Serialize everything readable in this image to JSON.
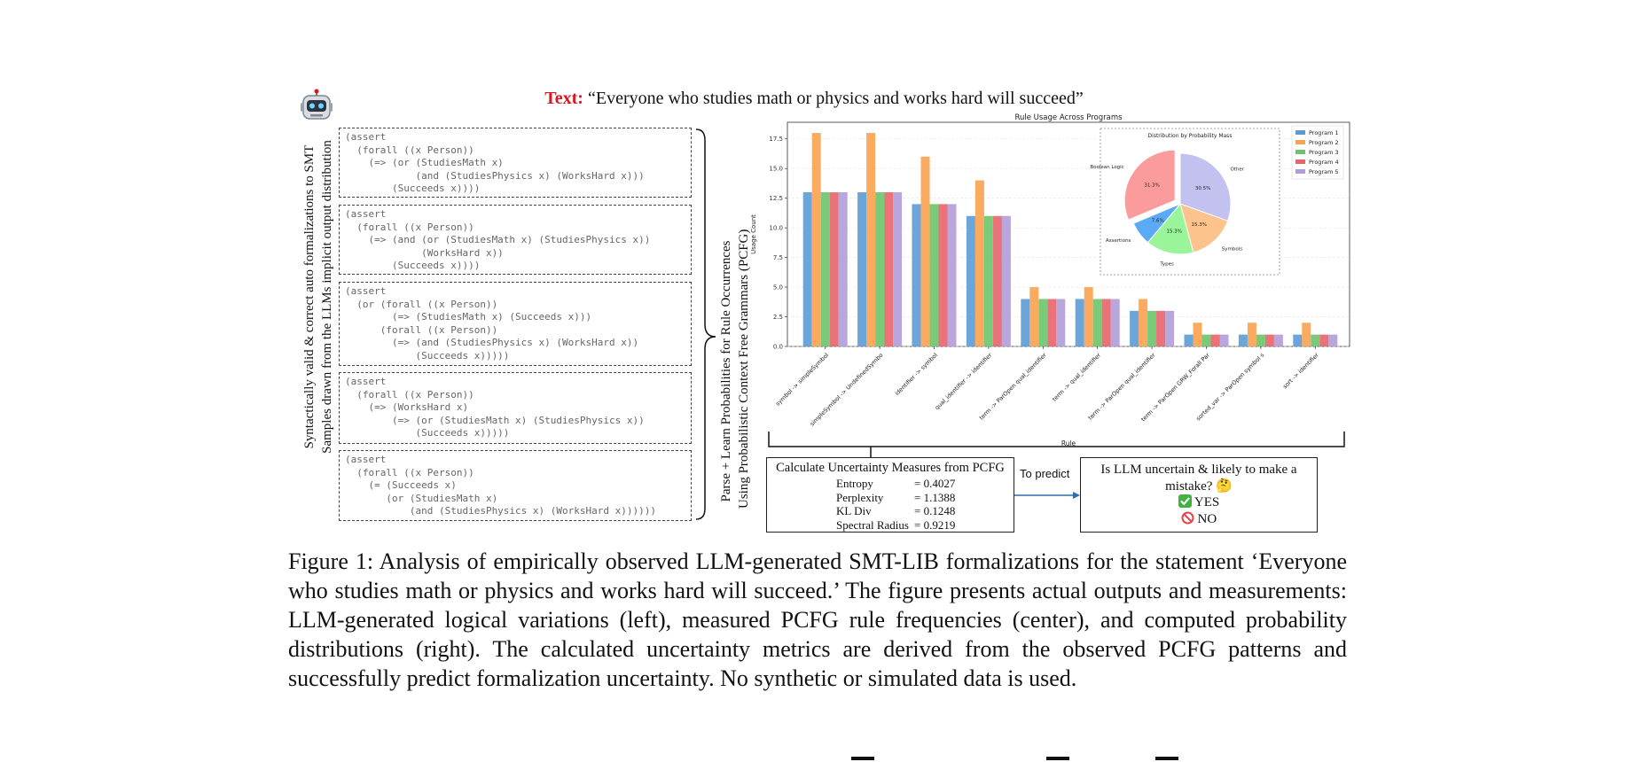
{
  "header": {
    "label": "Text:",
    "quote": "“Everyone who studies math or physics and works hard will succeed”"
  },
  "left_label": {
    "line1": "Syntactically valid & correct auto formalizations to SMT",
    "line2": "Samples drawn from the LLMs implicit output distribution"
  },
  "samples": [
    "(assert\n  (forall ((x Person))\n    (=> (or (StudiesMath x)\n            (and (StudiesPhysics x) (WorksHard x)))\n        (Succeeds x))))",
    "(assert\n  (forall ((x Person))\n    (=> (and (or (StudiesMath x) (StudiesPhysics x))\n             (WorksHard x))\n        (Succeeds x))))",
    "(assert\n  (or (forall ((x Person))\n        (=> (StudiesMath x) (Succeeds x)))\n      (forall ((x Person))\n        (=> (and (StudiesPhysics x) (WorksHard x))\n            (Succeeds x)))))",
    "(assert\n  (forall ((x Person))\n    (=> (WorksHard x)\n        (=> (or (StudiesMath x) (StudiesPhysics x))\n            (Succeeds x)))))",
    "(assert\n  (forall ((x Person))\n    (= (Succeeds x)\n       (or (StudiesMath x)\n           (and (StudiesPhysics x) (WorksHard x))))))"
  ],
  "middle_label": {
    "line1": "Parse + Learn Probabilities for Rule Occurrences",
    "line2": "Using Probabilistic Context Free Grammars (PCFG)"
  },
  "colors": {
    "programs": [
      "#5b9bd5",
      "#f9a24e",
      "#6cc56a",
      "#e8636a",
      "#b19cd9"
    ],
    "pie": [
      "#c2c1f0",
      "#fcc48c",
      "#9af59a",
      "#5aaaf5",
      "#fc9b9b"
    ],
    "red": "#e0141e",
    "check": "#3fb33f",
    "no": "#e64545"
  },
  "chart_data": {
    "type": "bar",
    "title": "Rule Usage Across Programs",
    "xlabel": "Rule",
    "ylabel": "Usage Count",
    "ylim": [
      0,
      18.9
    ],
    "yticks": [
      "0.0",
      "2.5",
      "5.0",
      "7.5",
      "10.0",
      "12.5",
      "15.0",
      "17.5"
    ],
    "categories": [
      "symbol -> simpleSymbol",
      "simpleSymbol -> UndefinedSymbo",
      "identifier -> symbol",
      "qual_identifier -> identifier",
      "term -> ParOpen qual_identifier",
      "term -> qual_identifier",
      "term -> ParOpen qual_identifier",
      "term -> ParOpen GRW_Forall Par",
      "sorted_var -> ParOpen symbol s",
      "sort -> identifier"
    ],
    "series": [
      {
        "name": "Program 1",
        "values": [
          13,
          13,
          12,
          11,
          4,
          4,
          3,
          1,
          1,
          1
        ]
      },
      {
        "name": "Program 2",
        "values": [
          18,
          18,
          16,
          14,
          5,
          5,
          4,
          2,
          2,
          2
        ]
      },
      {
        "name": "Program 3",
        "values": [
          13,
          13,
          12,
          11,
          4,
          4,
          3,
          1,
          1,
          1
        ]
      },
      {
        "name": "Program 4",
        "values": [
          13,
          13,
          12,
          11,
          4,
          4,
          3,
          1,
          1,
          1
        ]
      },
      {
        "name": "Program 5",
        "values": [
          13,
          13,
          12,
          11,
          4,
          4,
          3,
          1,
          1,
          1
        ]
      }
    ],
    "inset_pie": {
      "title": "Distribution by Probability Mass",
      "slices": [
        {
          "label": "Other",
          "value": 30.5,
          "pct": "30.5%"
        },
        {
          "label": "Symbols",
          "value": 15.3,
          "pct": "15.3%"
        },
        {
          "label": "Types",
          "value": 15.3,
          "pct": "15.3%"
        },
        {
          "label": "Assertions",
          "value": 7.6,
          "pct": "7.6%"
        },
        {
          "label": "Boolean Logic",
          "value": 31.3,
          "pct": "31.3%"
        }
      ]
    }
  },
  "uncertainty": {
    "title": "Calculate Uncertainty Measures from PCFG",
    "metrics": [
      {
        "name": "Entropy",
        "value": "= 0.4027"
      },
      {
        "name": "Perplexity",
        "value": "= 1.1388"
      },
      {
        "name": "KL Div",
        "value": "= 0.1248"
      },
      {
        "name": "Spectral Radius",
        "value": "= 0.9219"
      }
    ]
  },
  "predict_label": "To predict",
  "question": {
    "text": "Is LLM uncertain & likely to make a mistake? 🤔",
    "yes": "YES",
    "no": "NO"
  },
  "caption": "Figure 1: Analysis of empirically observed LLM-generated SMT-LIB formalizations for the statement ‘Everyone who studies math or physics and works hard will succeed.’ The figure presents actual outputs and measurements: LLM-generated logical variations (left), measured PCFG rule frequencies (center), and computed probability distributions (right). The calculated uncertainty metrics are derived from the observed PCFG patterns and successfully predict formalization uncertainty. No synthetic or simulated data is used."
}
